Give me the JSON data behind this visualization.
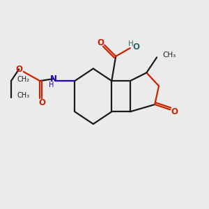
{
  "bg_color": "#ebebeb",
  "bond_color": "#1a1a1a",
  "o_color": "#cc2200",
  "n_color": "#2200cc",
  "oh_color": "#336666",
  "line_width": 1.6,
  "font_size": 8.5,
  "fig_size": [
    3.0,
    3.0
  ],
  "dpi": 100,
  "xlim": [
    0,
    10
  ],
  "ylim": [
    0,
    10
  ]
}
